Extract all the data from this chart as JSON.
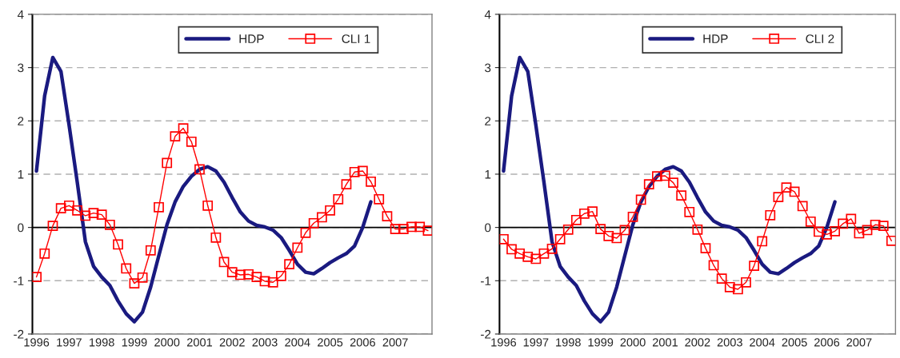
{
  "chart_data": [
    {
      "type": "line",
      "categories": [
        "1996",
        null,
        null,
        null,
        "1997",
        null,
        null,
        null,
        "1998",
        null,
        null,
        null,
        "1999",
        null,
        null,
        null,
        "2000",
        null,
        null,
        null,
        "2001",
        null,
        null,
        null,
        "2002",
        null,
        null,
        null,
        "2003",
        null,
        null,
        null,
        "2004",
        null,
        null,
        null,
        "2005",
        null,
        null,
        null,
        "2006",
        null,
        null,
        null,
        "2007",
        null,
        null,
        null,
        null
      ],
      "series": [
        {
          "name": "HDP",
          "color": "#1a1a80",
          "marker": "none",
          "values": [
            1.06,
            2.47,
            3.19,
            2.93,
            1.92,
            0.85,
            -0.27,
            -0.73,
            -0.93,
            -1.09,
            -1.38,
            -1.62,
            -1.77,
            -1.59,
            -1.12,
            -0.53,
            0.05,
            0.48,
            0.77,
            0.96,
            1.09,
            1.14,
            1.06,
            0.85,
            0.56,
            0.29,
            0.12,
            0.04,
            0.01,
            -0.05,
            -0.19,
            -0.43,
            -0.69,
            -0.84,
            -0.87,
            -0.77,
            -0.66,
            -0.57,
            -0.49,
            -0.35,
            0.0,
            0.48,
            null,
            null,
            null,
            null,
            null,
            null,
            null
          ]
        },
        {
          "name": "CLI 1",
          "color": "#ff0000",
          "marker": "square",
          "values": [
            -0.93,
            -0.49,
            0.03,
            0.36,
            0.41,
            0.32,
            0.22,
            0.27,
            0.24,
            0.05,
            -0.32,
            -0.77,
            -1.05,
            -0.94,
            -0.43,
            0.38,
            1.21,
            1.71,
            1.86,
            1.61,
            1.09,
            0.41,
            -0.19,
            -0.65,
            -0.84,
            -0.89,
            -0.88,
            -0.93,
            -1.01,
            -1.03,
            -0.91,
            -0.69,
            -0.38,
            -0.1,
            0.08,
            0.19,
            0.32,
            0.53,
            0.81,
            1.04,
            1.06,
            0.86,
            0.53,
            0.21,
            -0.03,
            -0.03,
            0.01,
            0.01,
            -0.06
          ]
        }
      ],
      "ylim": [
        -2,
        4
      ],
      "yticks": [
        -2,
        -1,
        0,
        1,
        2,
        3,
        4
      ],
      "grid": "y",
      "legend": "top right",
      "ref_lines": [
        {
          "axis": "y",
          "value": 0,
          "color": "#000000",
          "line_style": "solid"
        }
      ]
    },
    {
      "type": "line",
      "categories": [
        "1996",
        null,
        null,
        null,
        "1997",
        null,
        null,
        null,
        "1998",
        null,
        null,
        null,
        "1999",
        null,
        null,
        null,
        "2000",
        null,
        null,
        null,
        "2001",
        null,
        null,
        null,
        "2002",
        null,
        null,
        null,
        "2003",
        null,
        null,
        null,
        "2004",
        null,
        null,
        null,
        "2005",
        null,
        null,
        null,
        "2006",
        null,
        null,
        null,
        "2007",
        null,
        null,
        null,
        null
      ],
      "series": [
        {
          "name": "HDP",
          "color": "#1a1a80",
          "marker": "none",
          "values": [
            1.06,
            2.47,
            3.19,
            2.93,
            1.92,
            0.85,
            -0.27,
            -0.73,
            -0.93,
            -1.09,
            -1.38,
            -1.62,
            -1.77,
            -1.59,
            -1.12,
            -0.53,
            0.05,
            0.48,
            0.77,
            0.96,
            1.09,
            1.14,
            1.06,
            0.85,
            0.56,
            0.29,
            0.12,
            0.04,
            0.01,
            -0.05,
            -0.19,
            -0.43,
            -0.69,
            -0.84,
            -0.87,
            -0.77,
            -0.66,
            -0.57,
            -0.49,
            -0.35,
            0.0,
            0.48,
            null,
            null,
            null,
            null,
            null,
            null,
            null
          ]
        },
        {
          "name": "CLI 2",
          "color": "#ff0000",
          "marker": "square",
          "values": [
            -0.22,
            -0.41,
            -0.49,
            -0.55,
            -0.59,
            -0.49,
            -0.4,
            -0.22,
            -0.04,
            0.14,
            0.26,
            0.3,
            -0.03,
            -0.16,
            -0.2,
            -0.05,
            0.2,
            0.52,
            0.81,
            0.96,
            0.97,
            0.84,
            0.6,
            0.29,
            -0.04,
            -0.39,
            -0.71,
            -0.96,
            -1.12,
            -1.16,
            -1.03,
            -0.72,
            -0.26,
            0.23,
            0.57,
            0.75,
            0.67,
            0.4,
            0.11,
            -0.08,
            -0.13,
            -0.07,
            0.07,
            0.16,
            -0.11,
            -0.05,
            0.05,
            0.03,
            -0.25
          ]
        }
      ],
      "ylim": [
        -2,
        4
      ],
      "yticks": [
        -2,
        -1,
        0,
        1,
        2,
        3,
        4
      ],
      "grid": "y",
      "legend": "top right",
      "ref_lines": [
        {
          "axis": "y",
          "value": 0,
          "color": "#000000",
          "line_style": "solid"
        }
      ]
    }
  ]
}
